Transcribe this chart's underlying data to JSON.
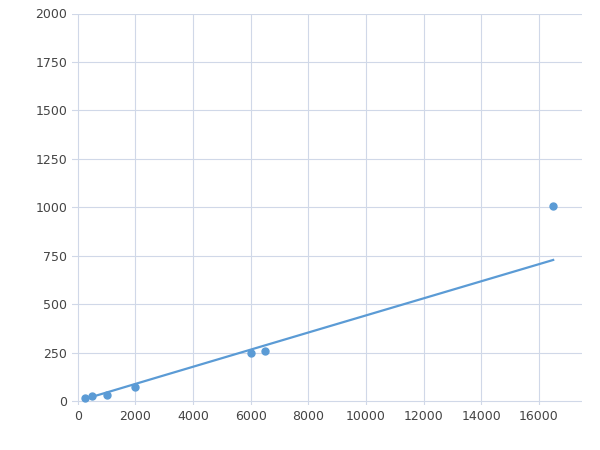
{
  "x": [
    250,
    500,
    1000,
    2000,
    6000,
    6500,
    16500
  ],
  "y": [
    15,
    25,
    30,
    75,
    250,
    260,
    1005
  ],
  "line_color": "#5b9bd5",
  "marker_color": "#5b9bd5",
  "marker_size": 5,
  "xlim": [
    -200,
    17500
  ],
  "ylim": [
    -20,
    2000
  ],
  "xticks": [
    0,
    2000,
    4000,
    6000,
    8000,
    10000,
    12000,
    14000,
    16000
  ],
  "yticks": [
    0,
    250,
    500,
    750,
    1000,
    1250,
    1500,
    1750,
    2000
  ],
  "grid_color": "#d0d8e8",
  "background_color": "#ffffff",
  "line_width": 1.6
}
